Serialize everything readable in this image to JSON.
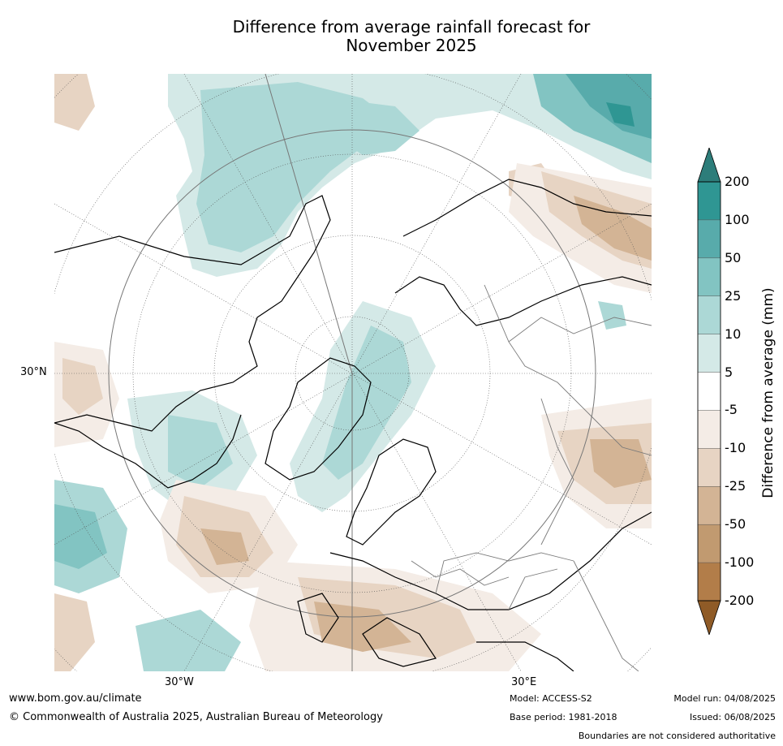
{
  "title_line1": "Difference from average rainfall forecast for",
  "title_line2": "November 2025",
  "map": {
    "projection": "north-polar-stereographic",
    "tick_labels": {
      "lat": "30°N",
      "lon_left": "30°W",
      "lon_right": "30°E"
    },
    "colors": {
      "wet_5_10": "#d4e9e7",
      "wet_10_25": "#acd8d6",
      "wet_25_50": "#82c4c2",
      "wet_50_100": "#58abab",
      "wet_100_200": "#2f9693",
      "dry_5_10": "#f4ece6",
      "dry_10_25": "#e7d4c3",
      "dry_25_50": "#d3b495",
      "land_outline": "#000000",
      "border": "#7a7a7a"
    }
  },
  "colorbar": {
    "title": "Difference from average (mm)",
    "labels": [
      "200",
      "100",
      "50",
      "25",
      "10",
      "5",
      "-5",
      "-10",
      "-25",
      "-50",
      "-100",
      "-200"
    ],
    "colors": [
      "#2d7d7a",
      "#2f9693",
      "#58abab",
      "#82c4c2",
      "#acd8d6",
      "#d4e9e7",
      "#ffffff",
      "#f4ece6",
      "#e7d4c3",
      "#d3b495",
      "#c19a70",
      "#b27d49",
      "#9a5f2a"
    ],
    "top_extend_color": "#2d7d7a",
    "bottom_extend_color": "#8f5b27"
  },
  "footer": {
    "website": "www.bom.gov.au/climate",
    "copyright": "© Commonwealth of Australia 2025, Australian Bureau of Meteorology",
    "model": "Model: ACCESS-S2",
    "base_period": "Base period: 1981-2018",
    "model_run": "Model run: 04/08/2025",
    "issued": "Issued: 06/08/2025",
    "disclaimer": "Boundaries are not considered authoritative"
  }
}
